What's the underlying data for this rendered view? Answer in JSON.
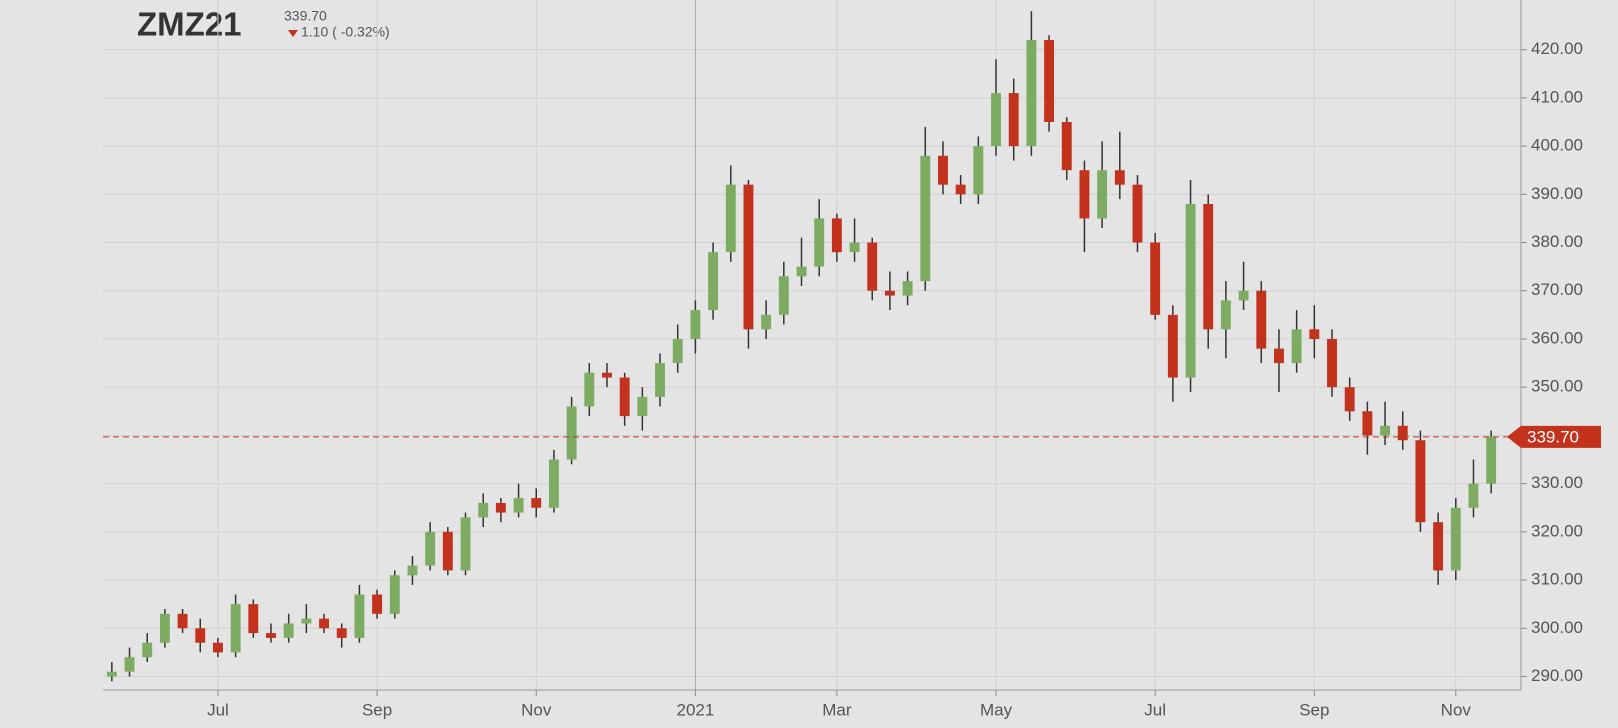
{
  "chart_data": {
    "type": "candlestick",
    "title": "ZMZ21",
    "change": "1.10 ( -0.32%)",
    "last_price": {
      "value": 339.7,
      "label": "339.70"
    },
    "categories": [
      null,
      null,
      null,
      null,
      null,
      null,
      "Jul",
      null,
      null,
      null,
      null,
      null,
      null,
      null,
      null,
      "Sep",
      null,
      null,
      null,
      null,
      null,
      null,
      null,
      null,
      "Nov",
      null,
      null,
      null,
      null,
      null,
      null,
      null,
      null,
      "2021",
      null,
      null,
      null,
      null,
      null,
      null,
      null,
      "Mar",
      null,
      null,
      null,
      null,
      null,
      null,
      null,
      null,
      "May",
      null,
      null,
      null,
      null,
      null,
      null,
      null,
      null,
      "Jul",
      null,
      null,
      null,
      null,
      null,
      null,
      null,
      null,
      "Sep",
      null,
      null,
      null,
      null,
      null,
      null,
      null,
      "Nov",
      null,
      null
    ],
    "open": [
      290,
      291,
      294,
      297,
      303,
      300,
      297,
      295,
      305,
      299,
      298,
      301,
      302,
      300,
      298,
      307,
      303,
      311,
      313,
      320,
      312,
      323,
      326,
      324,
      327,
      325,
      335,
      346,
      353,
      352,
      344,
      348,
      355,
      360,
      366,
      378,
      392,
      362,
      365,
      373,
      375,
      385,
      378,
      380,
      370,
      369,
      372,
      398,
      392,
      390,
      400,
      411,
      400,
      422,
      405,
      395,
      385,
      395,
      392,
      380,
      365,
      352,
      388,
      362,
      368,
      370,
      358,
      355,
      362,
      360,
      350,
      345,
      340,
      342,
      339,
      322,
      312,
      325,
      330
    ],
    "high": [
      293,
      296,
      299,
      304,
      304,
      302,
      298,
      307,
      306,
      301,
      303,
      305,
      303,
      301,
      309,
      308,
      312,
      315,
      322,
      321,
      324,
      328,
      327,
      330,
      329,
      337,
      348,
      355,
      355,
      353,
      350,
      357,
      363,
      368,
      380,
      396,
      393,
      368,
      376,
      381,
      389,
      386,
      385,
      381,
      374,
      374,
      404,
      401,
      394,
      402,
      418,
      414,
      428,
      423,
      406,
      397,
      401,
      403,
      394,
      382,
      367,
      393,
      390,
      372,
      376,
      372,
      362,
      366,
      367,
      362,
      352,
      347,
      347,
      345,
      341,
      324,
      327,
      335,
      341
    ],
    "low": [
      289,
      290,
      293,
      296,
      299,
      295,
      294,
      294,
      298,
      297,
      297,
      299,
      299,
      296,
      297,
      302,
      302,
      309,
      312,
      311,
      311,
      321,
      322,
      323,
      323,
      324,
      334,
      344,
      350,
      342,
      341,
      346,
      353,
      357,
      364,
      376,
      358,
      360,
      363,
      371,
      373,
      376,
      376,
      368,
      366,
      367,
      370,
      390,
      388,
      388,
      398,
      397,
      398,
      403,
      393,
      378,
      383,
      389,
      378,
      364,
      347,
      349,
      358,
      356,
      366,
      355,
      349,
      353,
      356,
      348,
      343,
      336,
      338,
      337,
      320,
      309,
      310,
      323,
      328
    ],
    "close": [
      291,
      294,
      297,
      303,
      300,
      297,
      295,
      305,
      299,
      298,
      301,
      302,
      300,
      298,
      307,
      303,
      311,
      313,
      320,
      312,
      323,
      326,
      324,
      327,
      325,
      335,
      346,
      353,
      352,
      344,
      348,
      355,
      360,
      366,
      378,
      392,
      362,
      365,
      373,
      375,
      385,
      378,
      380,
      370,
      369,
      372,
      398,
      392,
      390,
      400,
      411,
      400,
      422,
      405,
      395,
      385,
      395,
      392,
      380,
      365,
      352,
      388,
      362,
      368,
      370,
      358,
      355,
      362,
      360,
      350,
      345,
      340,
      342,
      339,
      322,
      312,
      325,
      330,
      339.7
    ],
    "up_color": "#7eab62",
    "down_color": "#c2321d",
    "wick_color": "#333333",
    "ylim": [
      287.2,
      430.3
    ],
    "yticks": [
      {
        "value": 290,
        "label": "290.00"
      },
      {
        "value": 300,
        "label": "300.00"
      },
      {
        "value": 310,
        "label": "310.00"
      },
      {
        "value": 320,
        "label": "320.00"
      },
      {
        "value": 330,
        "label": "330.00"
      },
      {
        "value": 340,
        "label": "340.00"
      },
      {
        "value": 350,
        "label": "350.00"
      },
      {
        "value": 360,
        "label": "360.00"
      },
      {
        "value": 370,
        "label": "370.00"
      },
      {
        "value": 380,
        "label": "380.00"
      },
      {
        "value": 390,
        "label": "390.00"
      },
      {
        "value": 400,
        "label": "400.00"
      },
      {
        "value": 410,
        "label": "410.00"
      },
      {
        "value": 420,
        "label": "420.00"
      }
    ],
    "grid": true
  }
}
